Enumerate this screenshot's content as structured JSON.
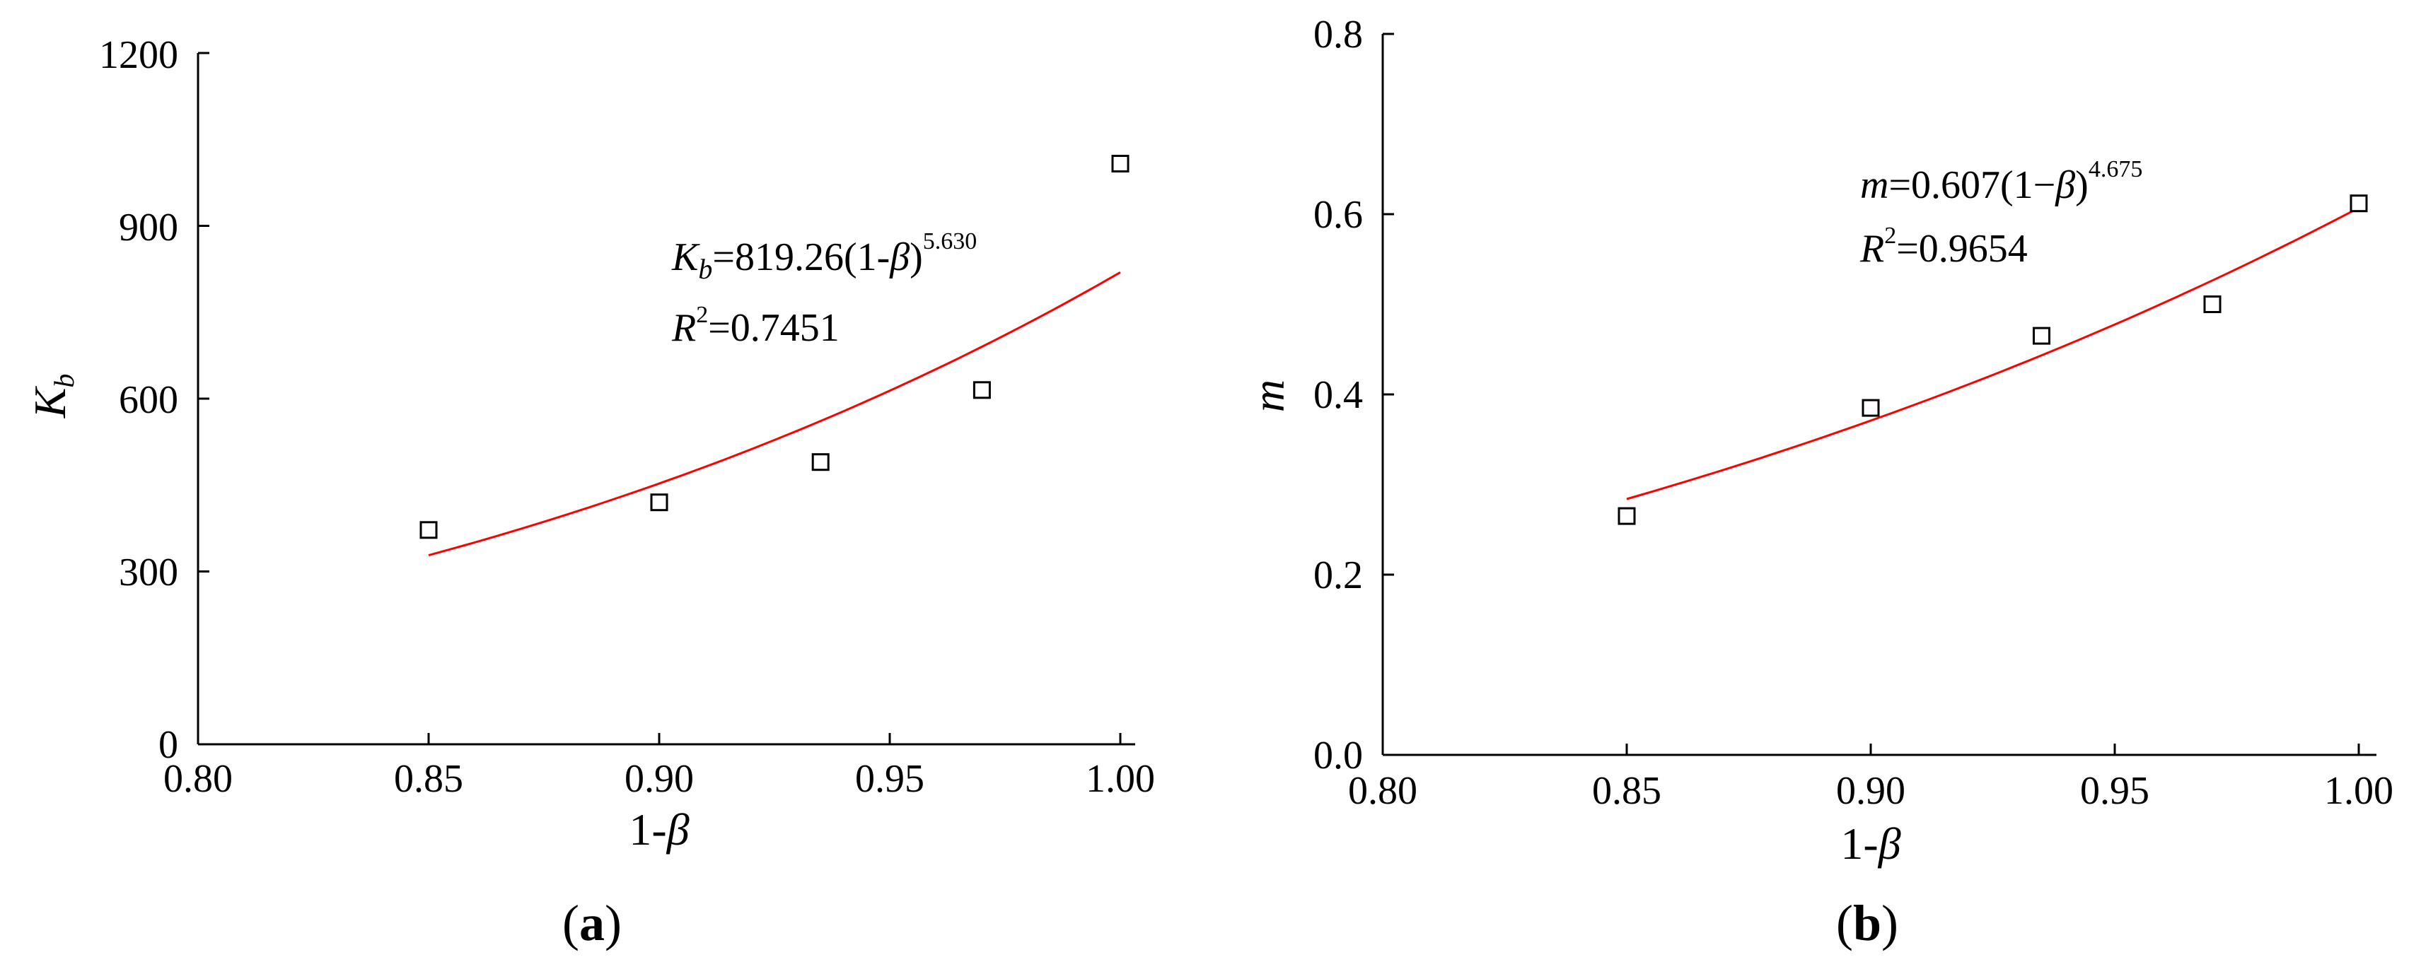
{
  "chart_data": [
    {
      "type": "scatter",
      "panel_label": "a",
      "xlabel": "1-β",
      "ylabel": "K_b",
      "xlim": [
        0.8,
        1.0
      ],
      "ylim": [
        0,
        1200
      ],
      "x_ticks": [
        "0.80",
        "0.85",
        "0.90",
        "0.95",
        "1.00"
      ],
      "y_ticks": [
        "0",
        "300",
        "600",
        "900",
        "1200"
      ],
      "points": [
        {
          "x": 0.85,
          "y": 372
        },
        {
          "x": 0.9,
          "y": 420
        },
        {
          "x": 0.935,
          "y": 490
        },
        {
          "x": 0.97,
          "y": 615
        },
        {
          "x": 1.0,
          "y": 1008
        }
      ],
      "fit": {
        "coefficient": 819.26,
        "exponent": 5.63,
        "x_range": [
          0.85,
          1.0
        ],
        "color": "#ff0000",
        "equation": {
          "lhs": "K",
          "lhs_sub": "b",
          "rhs": "=819.26(1-",
          "var": "β",
          "close": ")",
          "exp": "5.630"
        },
        "r2": {
          "r": "R",
          "sup": "2",
          "value": "=0.7451"
        }
      },
      "grid": false,
      "legend": "none"
    },
    {
      "type": "scatter",
      "panel_label": "b",
      "xlabel": "1-β",
      "ylabel": "m",
      "xlim": [
        0.8,
        1.0
      ],
      "ylim": [
        0.0,
        0.8
      ],
      "x_ticks": [
        "0.80",
        "0.85",
        "0.90",
        "0.95",
        "1.00"
      ],
      "y_ticks": [
        "0.0",
        "0.2",
        "0.4",
        "0.6",
        "0.8"
      ],
      "points": [
        {
          "x": 0.85,
          "y": 0.265
        },
        {
          "x": 0.9,
          "y": 0.385
        },
        {
          "x": 0.935,
          "y": 0.465
        },
        {
          "x": 0.97,
          "y": 0.5
        },
        {
          "x": 1.0,
          "y": 0.612
        }
      ],
      "fit": {
        "coefficient": 0.607,
        "exponent": 4.675,
        "x_range": [
          0.85,
          1.0
        ],
        "color": "#ff0000",
        "equation": {
          "lhs": "m",
          "rhs": "=0.607(1−",
          "var": "β",
          "close": ")",
          "exp": "4.675"
        },
        "r2": {
          "r": "R",
          "sup": "2",
          "value": "=0.9654"
        }
      },
      "grid": false,
      "legend": "none"
    }
  ]
}
